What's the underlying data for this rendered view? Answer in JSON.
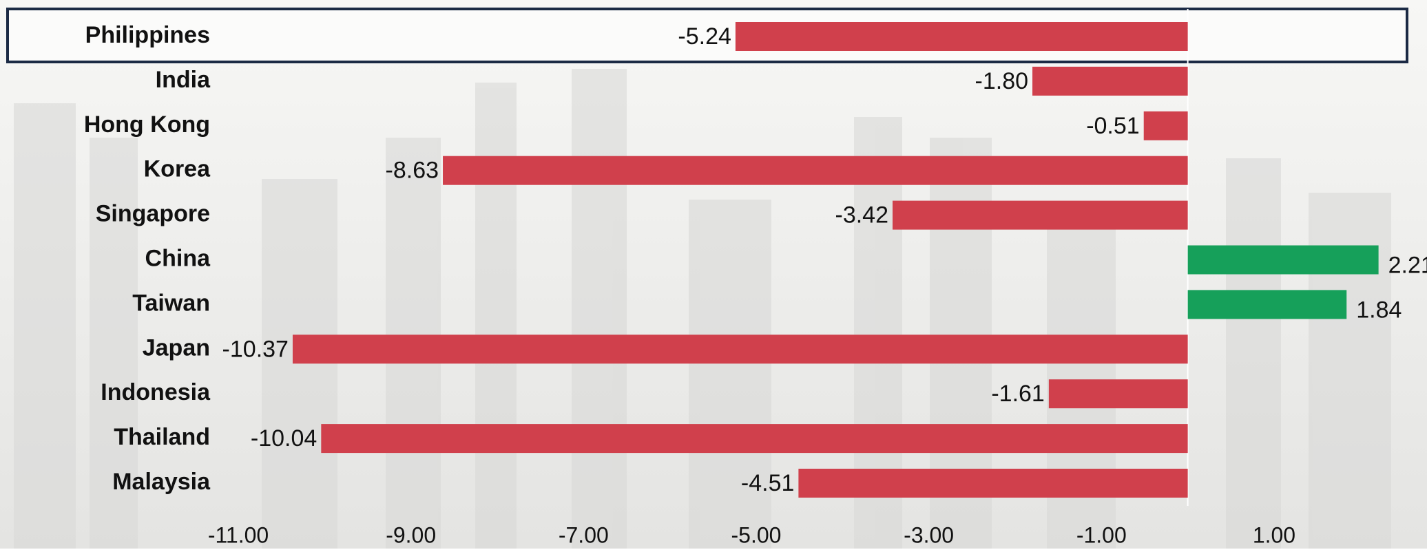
{
  "chart_data": {
    "type": "bar",
    "orientation": "horizontal",
    "categories": [
      "Philippines",
      "India",
      "Hong Kong",
      "Korea",
      "Singapore",
      "China",
      "Taiwan",
      "Japan",
      "Indonesia",
      "Thailand",
      "Malaysia"
    ],
    "values": [
      -5.24,
      -1.8,
      -0.51,
      -8.63,
      -3.42,
      2.21,
      1.84,
      -10.37,
      -1.61,
      -10.04,
      -4.51
    ],
    "value_labels": [
      "-5.24",
      "-1.80",
      "-0.51",
      "-8.63",
      "-3.42",
      "2.21",
      "1.84",
      "-10.37",
      "-1.61",
      "-10.04",
      "-4.51"
    ],
    "negative_color": "#d0404c",
    "positive_color": "#16a05a",
    "xlim": [
      -11,
      2.5
    ],
    "xticks": [
      {
        "value": -11,
        "label": "-11.00"
      },
      {
        "value": -9,
        "label": "-9.00"
      },
      {
        "value": -7,
        "label": "-7.00"
      },
      {
        "value": -5,
        "label": "-5.00"
      },
      {
        "value": -3,
        "label": "-3.00"
      },
      {
        "value": -1,
        "label": "-1.00"
      },
      {
        "value": 1,
        "label": "1.00"
      }
    ],
    "grid": false
  }
}
